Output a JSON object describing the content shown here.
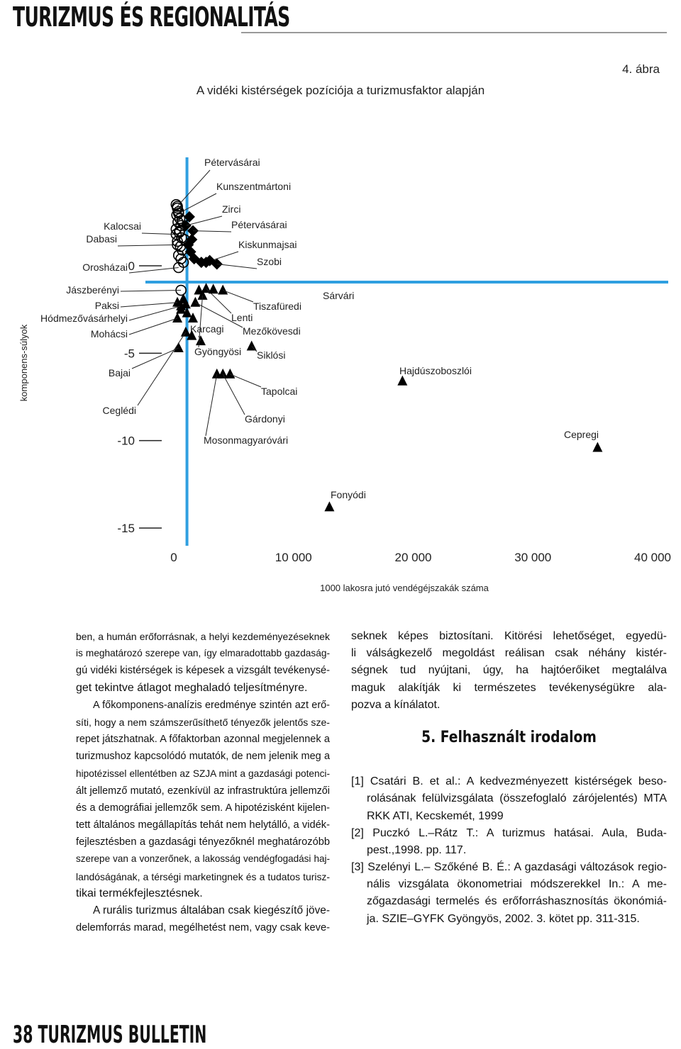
{
  "header": {
    "title": "TURIZMUS ÉS REGIONALITÁS"
  },
  "chart_data": {
    "type": "scatter",
    "figure_number": "4. ábra",
    "title": "A vidéki kistérségek pozíciója a turizmusfaktor alapján",
    "ylabel": "komponens-súlyok",
    "xlabel": "1000 lakosra jutó vendégéjszakák száma",
    "xlim": [
      0,
      40000
    ],
    "ylim": [
      -15,
      6
    ],
    "xticks": [
      0,
      {
        "value": 10000,
        "label": "10 000"
      },
      {
        "value": 20000,
        "label": "20 000"
      },
      {
        "value": 30000,
        "label": "30 000"
      },
      {
        "value": 40000,
        "label": "40 000"
      }
    ],
    "yticks": [
      0,
      -5,
      -10,
      -15
    ],
    "reference_lines": {
      "x": 1100,
      "y": -0.93,
      "color": "#2f9fe0"
    },
    "color": "#000000",
    "points": [
      {
        "label": "Pétervásárai",
        "x": 300,
        "y": 3.4,
        "marker": "circle"
      },
      {
        "label": "Kunszentmártoni",
        "x": 400,
        "y": 3.0,
        "marker": "circle"
      },
      {
        "label": "Zirci",
        "x": 1000,
        "y": 2.3,
        "marker": "diamond"
      },
      {
        "label": "Pétervásárai",
        "x": 1600,
        "y": 2.0,
        "marker": "diamond"
      },
      {
        "label": "Kiskunmajsai",
        "x": 2700,
        "y": 0.2,
        "marker": "diamond"
      },
      {
        "label": "Szobi",
        "x": 3600,
        "y": 0.1,
        "marker": "diamond"
      },
      {
        "label": "Kalocsai",
        "x": 200,
        "y": 1.8,
        "marker": "circle"
      },
      {
        "label": "Dabasi",
        "x": 300,
        "y": 1.2,
        "marker": "circle"
      },
      {
        "label": "Orosházai",
        "x": 400,
        "y": -0.1,
        "marker": "circle"
      },
      {
        "label": "Jászberényi",
        "x": 600,
        "y": -1.4,
        "marker": "circle"
      },
      {
        "label": "Paksi",
        "x": 300,
        "y": -2.1,
        "marker": "triangle"
      },
      {
        "label": "Hódmezővásárhelyi",
        "x": 600,
        "y": -2.3,
        "marker": "triangle"
      },
      {
        "label": "Mohácsi",
        "x": 300,
        "y": -3.0,
        "marker": "triangle"
      },
      {
        "label": "Bajai",
        "x": 400,
        "y": -4.7,
        "marker": "triangle"
      },
      {
        "label": "Ceglédi",
        "x": 1000,
        "y": -3.8,
        "marker": "triangle"
      },
      {
        "label": "Tiszafüredi",
        "x": 4100,
        "y": -1.4,
        "marker": "triangle"
      },
      {
        "label": "Lenti",
        "x": 2700,
        "y": -1.3,
        "marker": "triangle"
      },
      {
        "label": "Karcagi",
        "x": 2250,
        "y": -4.3,
        "marker": "triangle"
      },
      {
        "label": "Mezőkövesdi",
        "x": 1800,
        "y": -2.1,
        "marker": "triangle"
      },
      {
        "label": "Gyöngyösi",
        "x": 2400,
        "y": -1.7,
        "marker": "triangle"
      },
      {
        "label": "Siklósi",
        "x": 6500,
        "y": -4.6,
        "marker": "triangle"
      },
      {
        "label": "Tapolcai",
        "x": 4700,
        "y": -6.2,
        "marker": "triangle"
      },
      {
        "label": "Gárdonyi",
        "x": 4100,
        "y": -6.2,
        "marker": "triangle"
      },
      {
        "label": "Mosonmagyaróvári",
        "x": 3600,
        "y": -6.2,
        "marker": "triangle"
      },
      {
        "label": "Sárvári",
        "x": 3300,
        "y": -1.35,
        "marker": "triangle"
      },
      {
        "label": "Hajdúszoboszlói",
        "x": 19100,
        "y": -6.6,
        "marker": "triangle"
      },
      {
        "label": "Cepregi",
        "x": 35400,
        "y": -10.4,
        "marker": "triangle"
      },
      {
        "label": "Fonyódi",
        "x": 13000,
        "y": -13.8,
        "marker": "triangle"
      },
      {
        "label": null,
        "x": 200,
        "y": 3.5,
        "marker": "circle"
      },
      {
        "label": null,
        "x": 300,
        "y": 3.3,
        "marker": "circle"
      },
      {
        "label": null,
        "x": 400,
        "y": 3.1,
        "marker": "circle"
      },
      {
        "label": null,
        "x": 250,
        "y": 2.9,
        "marker": "circle"
      },
      {
        "label": null,
        "x": 500,
        "y": 2.7,
        "marker": "circle"
      },
      {
        "label": null,
        "x": 350,
        "y": 2.5,
        "marker": "circle"
      },
      {
        "label": null,
        "x": 600,
        "y": 2.3,
        "marker": "circle"
      },
      {
        "label": null,
        "x": 200,
        "y": 2.1,
        "marker": "circle"
      },
      {
        "label": null,
        "x": 450,
        "y": 1.9,
        "marker": "circle"
      },
      {
        "label": null,
        "x": 650,
        "y": 1.6,
        "marker": "circle"
      },
      {
        "label": null,
        "x": 300,
        "y": 1.4,
        "marker": "circle"
      },
      {
        "label": null,
        "x": 550,
        "y": 1.1,
        "marker": "circle"
      },
      {
        "label": null,
        "x": 700,
        "y": 0.9,
        "marker": "circle"
      },
      {
        "label": null,
        "x": 400,
        "y": 0.6,
        "marker": "circle"
      },
      {
        "label": null,
        "x": 600,
        "y": 0.4,
        "marker": "circle"
      },
      {
        "label": null,
        "x": 800,
        "y": 0.2,
        "marker": "circle"
      },
      {
        "label": null,
        "x": 500,
        "y": 2.0,
        "marker": "circle"
      },
      {
        "label": null,
        "x": 700,
        "y": 2.6,
        "marker": "circle"
      },
      {
        "label": null,
        "x": 900,
        "y": 1.5,
        "marker": "circle"
      },
      {
        "label": null,
        "x": 1300,
        "y": 2.8,
        "marker": "diamond"
      },
      {
        "label": null,
        "x": 1500,
        "y": 1.5,
        "marker": "diamond"
      },
      {
        "label": null,
        "x": 1400,
        "y": 0.8,
        "marker": "diamond"
      },
      {
        "label": null,
        "x": 1700,
        "y": 0.4,
        "marker": "diamond"
      },
      {
        "label": null,
        "x": 2300,
        "y": 0.2,
        "marker": "diamond"
      },
      {
        "label": null,
        "x": 3000,
        "y": 0.3,
        "marker": "diamond"
      },
      {
        "label": null,
        "x": 1200,
        "y": 1.2,
        "marker": "diamond"
      },
      {
        "label": null,
        "x": 800,
        "y": -1.9,
        "marker": "triangle"
      },
      {
        "label": null,
        "x": 1000,
        "y": -2.2,
        "marker": "triangle"
      },
      {
        "label": null,
        "x": 1100,
        "y": -2.7,
        "marker": "triangle"
      },
      {
        "label": null,
        "x": 600,
        "y": -2.5,
        "marker": "triangle"
      },
      {
        "label": null,
        "x": 1600,
        "y": -3.0,
        "marker": "triangle"
      },
      {
        "label": null,
        "x": 2100,
        "y": -1.4,
        "marker": "triangle"
      },
      {
        "label": null,
        "x": 1500,
        "y": -4.0,
        "marker": "triangle"
      }
    ]
  },
  "body": {
    "left": [
      [
        "ben, a humán erőforrásnak, a helyi kezdeményezéseknek",
        "is meghatározó szerepe van, így elmaradottabb gazdaság-",
        "gú vidéki kistérségek is képesek a vizsgált tevékenysé-",
        "get tekintve átlagot meghaladó teljesítményre."
      ],
      [
        "A főkomponens-analízis eredménye szintén azt erő-",
        "síti, hogy a nem számszerűsíthető tényezők jelentős sze-",
        "repet játszhatnak. A főfaktorban azonnal megjelennek a",
        "turizmushoz kapcsolódó mutatók, de nem jelenik meg a",
        "hipotézissel ellentétben az SZJA mint a gazdasági potenci-",
        "ált jellemző mutató, ezenkívül az infrastruktúra jellemzői",
        "és a demográfiai jellemzők sem. A hipotézisként kijelen-",
        "tett általános megállapítás tehát nem helytálló, a vidék-",
        "fejlesztésben a gazdasági tényezőknél meghatározóbb",
        "szerepe van a vonzerőnek, a lakosság vendégfogadási haj-",
        "landóságának, a térségi marketingnek és a tudatos turisz-",
        "tikai termékfejlesztésnek."
      ],
      [
        "A rurális turizmus általában csak kiegészítő jöve-",
        "delemforrás marad, megélhetést nem, vagy csak keve-"
      ]
    ],
    "right": [
      [
        "seknek képes biztosítani. Kitörési lehetőséget, egyedü-",
        "li válságkezelő megoldást reálisan csak néhány kistér-",
        "ségnek tud nyújtani, úgy, ha hajtóerőiket megtalálva",
        "maguk alakítják ki természetes tevékenységükre ala-",
        "pozva a kínálatot."
      ]
    ],
    "section_title": "5. Felhasznált irodalom",
    "references": [
      [
        "[1] Csatári B. et al.: A kedvezményezett kistérségek beso-",
        "rolásának felülvizsgálata (összefoglaló zárójelentés) MTA",
        "RKK ATI, Kecskemét, 1999"
      ],
      [
        "[2] Puczkó L.–Rátz T.: A turizmus hatásai. Aula, Buda-",
        "pest.,1998. pp. 117."
      ],
      [
        "[3] Szelényi L.– Szőkéné B. É.: A gazdasági változások regio-",
        "nális vizsgálata ökonometriai módszerekkel In.: A me-",
        "zőgazdasági termelés és erőforráshasznosítás ökonómiá-",
        "ja. SZIE–GYFK Gyöngyös, 2002. 3. kötet pp. 311-315."
      ]
    ]
  },
  "footer": {
    "text": "38 TURIZMUS BULLETIN"
  }
}
